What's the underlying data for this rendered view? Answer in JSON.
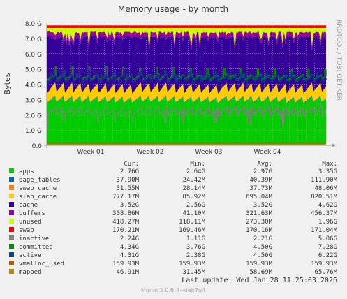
{
  "chart_data": {
    "type": "area",
    "title": "Memory usage - by month",
    "ylabel": "Bytes",
    "xlabel": "",
    "side_label": "RRDTOOL / TOBI OETIKER",
    "x_ticks": [
      "Week 01",
      "Week 02",
      "Week 03",
      "Week 04"
    ],
    "y_ticks": [
      "0.0",
      "1.0 G",
      "2.0 G",
      "3.0 G",
      "4.0 G",
      "5.0 G",
      "6.0 G",
      "7.0 G",
      "8.0 G"
    ],
    "ylim": [
      0,
      8.0
    ],
    "y_unit": "GB",
    "grid": true,
    "stacked": [
      "apps",
      "page_tables",
      "swap_cache",
      "slab_cache",
      "cache",
      "buffers",
      "unused",
      "swap"
    ],
    "lines": [
      "inactive",
      "committed",
      "active",
      "vmalloc_used",
      "mapped"
    ],
    "columns": [
      "Cur:",
      "Min:",
      "Avg:",
      "Max:"
    ],
    "series": [
      {
        "name": "apps",
        "color": "#00cc00",
        "cur": "2.76G",
        "min": "2.64G",
        "avg": "2.97G",
        "max": "3.35G",
        "cur_gb": 2.76
      },
      {
        "name": "page_tables",
        "color": "#0066b3",
        "cur": "37.90M",
        "min": "24.42M",
        "avg": "40.39M",
        "max": "111.90M",
        "cur_gb": 0.04
      },
      {
        "name": "swap_cache",
        "color": "#ff8000",
        "cur": "31.55M",
        "min": "28.14M",
        "avg": "37.73M",
        "max": "48.06M",
        "cur_gb": 0.03
      },
      {
        "name": "slab_cache",
        "color": "#ffcc00",
        "cur": "777.17M",
        "min": "85.92M",
        "avg": "695.04M",
        "max": "820.51M",
        "cur_gb": 0.78
      },
      {
        "name": "cache",
        "color": "#330099",
        "cur": "3.52G",
        "min": "2.56G",
        "avg": "3.52G",
        "max": "4.62G",
        "cur_gb": 3.52
      },
      {
        "name": "buffers",
        "color": "#990099",
        "cur": "308.86M",
        "min": "41.10M",
        "avg": "321.63M",
        "max": "456.37M",
        "cur_gb": 0.31
      },
      {
        "name": "unused",
        "color": "#ccff00",
        "cur": "418.27M",
        "min": "118.11M",
        "avg": "273.30M",
        "max": "1.96G",
        "cur_gb": 0.42
      },
      {
        "name": "swap",
        "color": "#ff0000",
        "cur": "170.21M",
        "min": "169.46M",
        "avg": "170.16M",
        "max": "171.04M",
        "cur_gb": 0.17
      },
      {
        "name": "inactive",
        "color": "#808080",
        "cur": "2.24G",
        "min": "1.11G",
        "avg": "2.21G",
        "max": "5.06G",
        "cur_gb": 2.24
      },
      {
        "name": "committed",
        "color": "#008f00",
        "cur": "4.34G",
        "min": "3.76G",
        "avg": "4.50G",
        "max": "7.28G",
        "cur_gb": 4.34
      },
      {
        "name": "active",
        "color": "#00487d",
        "cur": "4.31G",
        "min": "2.38G",
        "avg": "4.56G",
        "max": "6.22G",
        "cur_gb": 4.31
      },
      {
        "name": "vmalloc_used",
        "color": "#b35a00",
        "cur": "159.93M",
        "min": "159.93M",
        "avg": "159.93M",
        "max": "159.93M",
        "cur_gb": 0.16
      },
      {
        "name": "mapped",
        "color": "#b38f00",
        "cur": "46.91M",
        "min": "31.45M",
        "avg": "58.69M",
        "max": "65.76M",
        "cur_gb": 0.05
      }
    ],
    "last_update": "Last update:  Wed Jan 28 11:25:03 2026",
    "footer": "Munin 2.0.6-4+deb7u4"
  }
}
